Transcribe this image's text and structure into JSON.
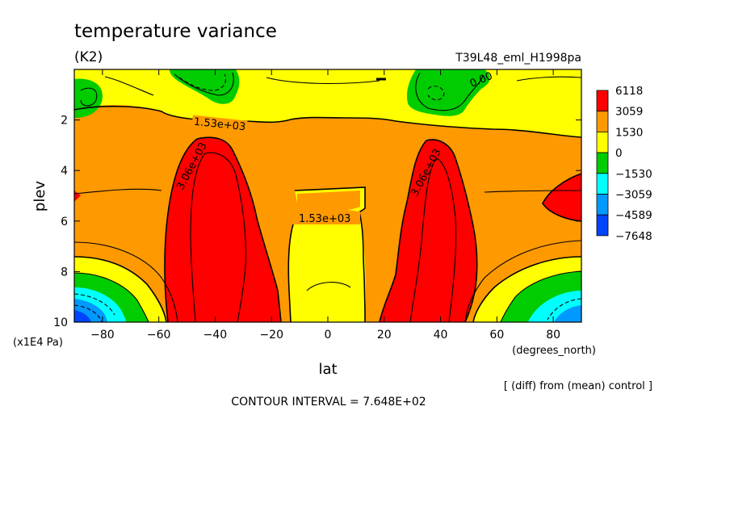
{
  "chart_data": {
    "type": "contour",
    "title": "temperature variance",
    "units": "(K2)",
    "run_label": "T39L48_eml_H1998pa",
    "xlabel": "lat",
    "x_units": "(degrees_north)",
    "ylabel": "plev",
    "y_units": "(x1E4 Pa)",
    "x_range": [
      -90,
      90
    ],
    "y_range": [
      10,
      0
    ],
    "x_ticks": [
      -80,
      -60,
      -40,
      -20,
      0,
      20,
      40,
      60,
      80
    ],
    "x_tick_labels": [
      "−80",
      "−60",
      "−40",
      "−20",
      "0",
      "20",
      "40",
      "60",
      "80"
    ],
    "y_ticks": [
      2,
      4,
      6,
      8,
      10
    ],
    "y_tick_labels": [
      "2",
      "4",
      "6",
      "8",
      "10"
    ],
    "note": "[ (diff) from (mean) control ]",
    "contour_interval": "CONTOUR INTERVAL = 7.648E+02",
    "contour_labels": [
      "1.53e+03",
      "3.06e+03",
      "3.06e+03",
      "1.53e+03",
      "0.00"
    ],
    "colorbar": {
      "labels": [
        "6118",
        "3059",
        "1530",
        "0",
        "−1530",
        "−3059",
        "−4589",
        "−7648"
      ],
      "colors": [
        "#ff0000",
        "#ff9900",
        "#ffff00",
        "#00cc00",
        "#00ffff",
        "#0099ff",
        "#0044ff"
      ]
    },
    "palette": {
      "red": "#ff0000",
      "orange": "#ff9900",
      "yellow": "#ffff00",
      "green": "#00cc00",
      "cyan": "#00ffff",
      "blue": "#0099ff",
      "darkblue": "#0044ff"
    }
  }
}
